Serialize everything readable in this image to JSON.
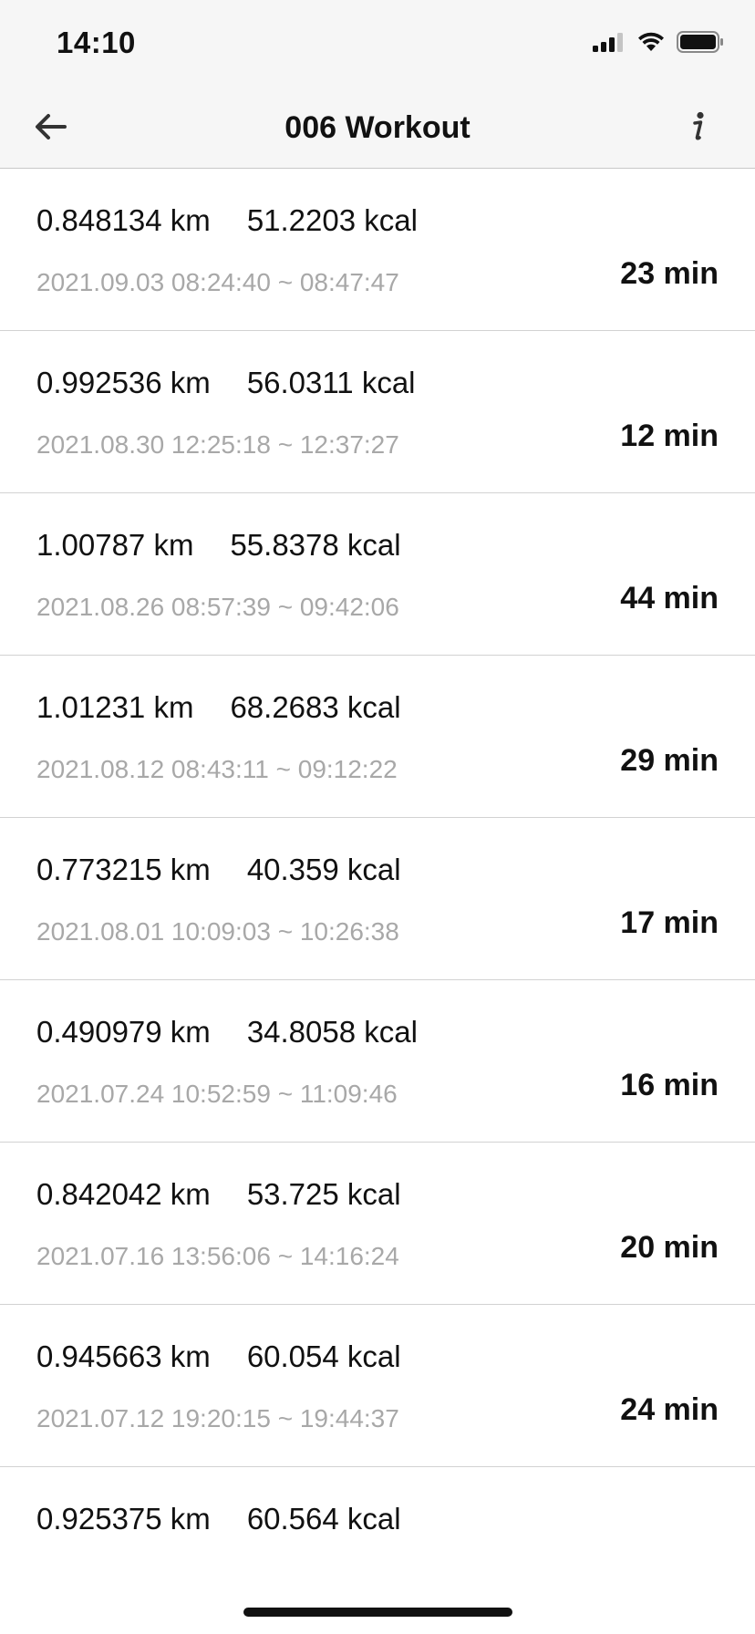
{
  "status_bar": {
    "time": "14:10",
    "icons": [
      "cellular-signal-icon",
      "wifi-icon",
      "battery-icon"
    ]
  },
  "nav": {
    "title": "006 Workout",
    "back_icon": "arrow-left-icon",
    "info_icon": "info-icon"
  },
  "workouts": [
    {
      "distance": "0.848134 km",
      "calories": "51.2203 kcal",
      "time_range": "2021.09.03 08:24:40 ~ 08:47:47",
      "duration": "23 min"
    },
    {
      "distance": "0.992536 km",
      "calories": "56.0311 kcal",
      "time_range": "2021.08.30 12:25:18 ~ 12:37:27",
      "duration": "12 min"
    },
    {
      "distance": "1.00787 km",
      "calories": "55.8378 kcal",
      "time_range": "2021.08.26 08:57:39 ~ 09:42:06",
      "duration": "44 min"
    },
    {
      "distance": "1.01231 km",
      "calories": "68.2683 kcal",
      "time_range": "2021.08.12 08:43:11 ~ 09:12:22",
      "duration": "29 min"
    },
    {
      "distance": "0.773215 km",
      "calories": "40.359 kcal",
      "time_range": "2021.08.01 10:09:03 ~ 10:26:38",
      "duration": "17 min"
    },
    {
      "distance": "0.490979 km",
      "calories": "34.8058 kcal",
      "time_range": "2021.07.24 10:52:59 ~ 11:09:46",
      "duration": "16 min"
    },
    {
      "distance": "0.842042 km",
      "calories": "53.725 kcal",
      "time_range": "2021.07.16 13:56:06 ~ 14:16:24",
      "duration": "20 min"
    },
    {
      "distance": "0.945663 km",
      "calories": "60.054 kcal",
      "time_range": "2021.07.12 19:20:15 ~ 19:44:37",
      "duration": "24 min"
    },
    {
      "distance": "0.925375 km",
      "calories": "60.564 kcal",
      "time_range": "",
      "duration": ""
    }
  ],
  "colors": {
    "bar_background": "#f6f6f6",
    "secondary_text": "#a8a8a8",
    "divider": "#d2d2d2"
  }
}
